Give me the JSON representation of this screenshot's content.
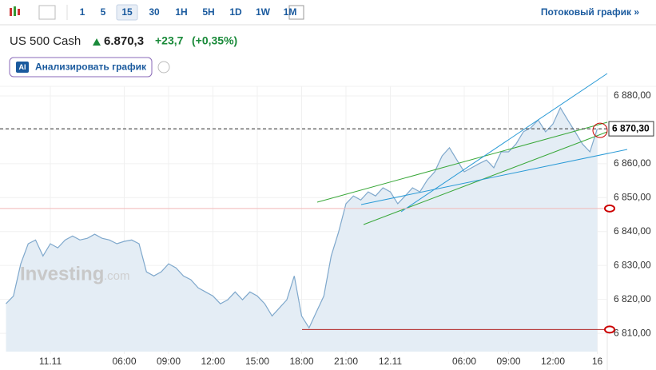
{
  "toolbar": {
    "intervals": [
      "1",
      "5",
      "15",
      "30",
      "1H",
      "5H",
      "1D",
      "1W",
      "1M"
    ],
    "active": "15",
    "stream_link": "Потоковый график »"
  },
  "header": {
    "instrument": "US 500 Cash",
    "price": "6.870,3",
    "change": "+23,7",
    "change_percent": "(+0,35%)",
    "ai_badge": "AI",
    "analyze_button": "Анализировать график"
  },
  "watermark": {
    "brand": "Investing",
    "suffix": ".com"
  },
  "chart_data": {
    "type": "area",
    "categories": [
      null,
      null,
      null,
      null,
      null,
      null,
      "11.11",
      null,
      null,
      null,
      null,
      null,
      null,
      null,
      null,
      null,
      "06:00",
      null,
      null,
      null,
      null,
      null,
      "09:00",
      null,
      null,
      null,
      null,
      null,
      "12:00",
      null,
      null,
      null,
      null,
      null,
      "15:00",
      null,
      null,
      null,
      null,
      null,
      "18:00",
      null,
      null,
      null,
      null,
      null,
      "21:00",
      null,
      null,
      null,
      null,
      null,
      "12.11",
      null,
      null,
      null,
      null,
      null,
      null,
      null,
      null,
      null,
      "06:00",
      null,
      null,
      null,
      null,
      null,
      "09:00",
      null,
      null,
      null,
      null,
      null,
      "12:00",
      null,
      null,
      null,
      null,
      null,
      "16"
    ],
    "values": [
      6818.7,
      6821,
      6830.5,
      6836.4,
      6837.5,
      6832.8,
      6836.4,
      6835.2,
      6837.5,
      6838.7,
      6837.5,
      6838,
      6839.2,
      6838,
      6837.5,
      6836.4,
      6837.1,
      6837.5,
      6836.4,
      6828.1,
      6826.9,
      6828.1,
      6830.5,
      6829.3,
      6826.9,
      6825.8,
      6823.4,
      6822.2,
      6821,
      6818.7,
      6819.9,
      6822.2,
      6819.9,
      6822.2,
      6821,
      6818.7,
      6815.1,
      6817.5,
      6819.9,
      6826.9,
      6815.1,
      6811.6,
      6816.3,
      6821,
      6832.8,
      6839.9,
      6848.2,
      6850.5,
      6849.3,
      6851.7,
      6850.5,
      6852.9,
      6851.7,
      6848.2,
      6850.5,
      6852.9,
      6851.7,
      6855.2,
      6857.6,
      6862.3,
      6864.7,
      6861.1,
      6857.6,
      6858.8,
      6860,
      6861.1,
      6858.8,
      6863.5,
      6863.5,
      6865.8,
      6869.4,
      6870.6,
      6872.9,
      6869.4,
      6871.7,
      6876.5,
      6872.9,
      6869.4,
      6865.8,
      6863.5,
      6870.3
    ],
    "color": "#7fa8cc",
    "ylim": [
      6804.6,
      6884.7
    ],
    "yticks": [
      {
        "value": 6810,
        "label": "6 810,00"
      },
      {
        "value": 6820,
        "label": "6 820,00"
      },
      {
        "value": 6830,
        "label": "6 830,00"
      },
      {
        "value": 6840,
        "label": "6 840,00"
      },
      {
        "value": 6850,
        "label": "6 850,00"
      },
      {
        "value": 6860,
        "label": "6 860,00"
      },
      {
        "value": 6870,
        "label": "6 870,00"
      },
      {
        "value": 6880,
        "label": "6 880,00"
      }
    ],
    "grid": true,
    "price_line": {
      "value": 6870.3,
      "label": "6 870,30"
    },
    "hlines": [
      {
        "value": 6846.8,
        "color": "#f2b8b8"
      },
      {
        "value": 6811.1,
        "color": "#b22222"
      }
    ]
  }
}
